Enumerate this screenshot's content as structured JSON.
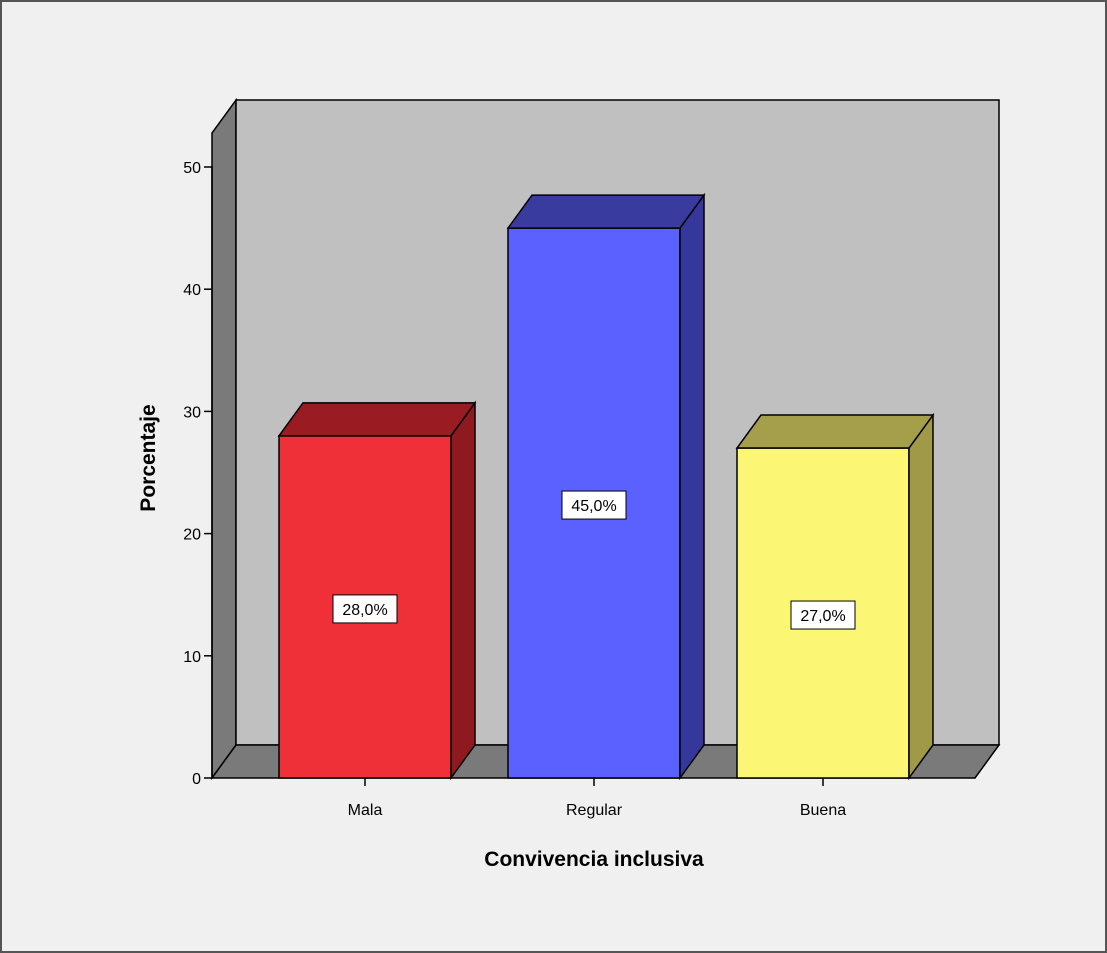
{
  "chart_data": {
    "type": "bar",
    "style": "3d",
    "categories": [
      "Mala",
      "Regular",
      "Buena"
    ],
    "values": [
      28.0,
      45.0,
      27.0
    ],
    "data_labels": [
      "28,0%",
      "45,0%",
      "27,0%"
    ],
    "xlabel": "Convivencia inclusiva",
    "ylabel": "Porcentaje",
    "ylim": [
      0,
      50
    ],
    "yticks": [
      0,
      10,
      20,
      30,
      40,
      50
    ],
    "ytick_labels": [
      "0",
      "10",
      "20",
      "30",
      "40",
      "50"
    ],
    "grid": false,
    "legend": "none",
    "colors": {
      "bar_fronts": [
        "#f03039",
        "#5b61ff",
        "#fbf674"
      ],
      "bar_sides": [
        "#8e1a20",
        "#35389a",
        "#a09a48"
      ],
      "bar_tops": [
        "#9a1c22",
        "#393c9e",
        "#a59e4a"
      ],
      "back_wall": "#c0c0c0",
      "side_wall": "#7a7a7a",
      "floor": "#7a7a7a",
      "frame_background": "#f0f0f0"
    }
  }
}
